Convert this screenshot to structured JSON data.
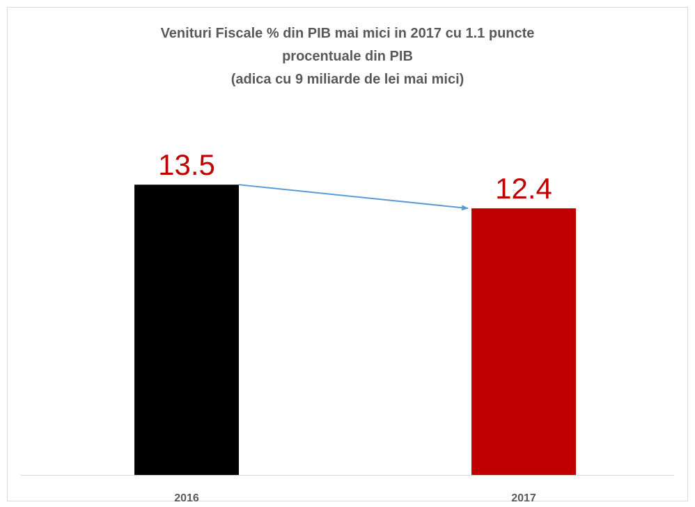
{
  "chart_data": {
    "type": "bar",
    "title": [
      "Venituri Fiscale % din PIB mai mici in 2017 cu 1.1 puncte",
      "procentuale din PIB",
      "(adica cu 9 miliarde de lei mai mici)"
    ],
    "categories": [
      "2016",
      "2017"
    ],
    "values": [
      13.5,
      12.4
    ],
    "colors": [
      "#000000",
      "#c00000"
    ],
    "label_color": "#c00000",
    "ylim": [
      0,
      16
    ]
  }
}
